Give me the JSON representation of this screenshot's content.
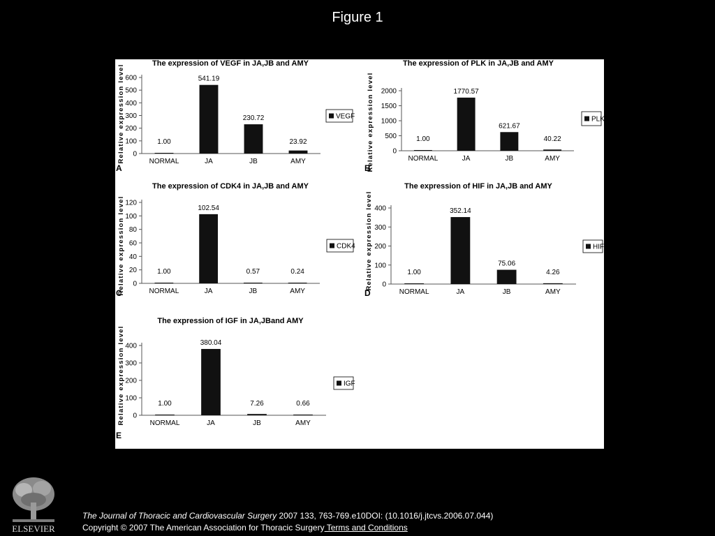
{
  "figure_title": "Figure 1",
  "footer": {
    "journal": "The Journal of Thoracic and Cardiovascular Surgery",
    "citation": " 2007 133, 763-769.e10DOI: (10.1016/j.jtcvs.2006.07.044)",
    "copyright": "Copyright © 2007 The American Association for Thoracic Surgery",
    "terms_link": " Terms and Conditions"
  },
  "logo": {
    "text": "ELSEVIER",
    "icon": "elsevier-tree-icon"
  },
  "colors": {
    "bar": "#111111",
    "background": "#000000",
    "panel": "#ffffff"
  },
  "chart_data": [
    {
      "type": "bar",
      "panel": "A",
      "title": "The expression of VEGF in JA,JB and AMY",
      "ylabel": "Relative expression level",
      "categories": [
        "NORMAL",
        "JA",
        "JB",
        "AMY"
      ],
      "series": [
        {
          "name": "VEGF",
          "values": [
            1.0,
            541.19,
            230.72,
            23.92
          ]
        }
      ],
      "value_labels": [
        "1.00",
        "541.19",
        "230.72",
        "23.92"
      ],
      "yticks": [
        "0",
        "100",
        "200",
        "300",
        "400",
        "500",
        "600"
      ],
      "ylim": [
        0,
        600
      ],
      "legend": "right",
      "grid": false
    },
    {
      "type": "bar",
      "panel": "B",
      "title": "The expression of PLK in JA,JB and AMY",
      "ylabel": "Relative expression level",
      "categories": [
        "NORMAL",
        "JA",
        "JB",
        "AMY"
      ],
      "series": [
        {
          "name": "PLK",
          "values": [
            1.0,
            1770.57,
            621.67,
            40.22
          ]
        }
      ],
      "value_labels": [
        "1.00",
        "1770.57",
        "621.67",
        "40.22"
      ],
      "yticks": [
        "0",
        "500",
        "1000",
        "1500",
        "2000"
      ],
      "ylim": [
        0,
        2000
      ],
      "legend": "right",
      "grid": false
    },
    {
      "type": "bar",
      "panel": "C",
      "title": "The expression of CDK4 in JA,JB and AMY",
      "ylabel": "Relative expression level",
      "categories": [
        "NORMAL",
        "JA",
        "JB",
        "AMY"
      ],
      "series": [
        {
          "name": "CDK4",
          "values": [
            1.0,
            102.54,
            0.57,
            0.24
          ]
        }
      ],
      "value_labels": [
        "1.00",
        "102.54",
        "0.57",
        "0.24"
      ],
      "yticks": [
        "0",
        "20",
        "40",
        "60",
        "80",
        "100",
        "120"
      ],
      "ylim": [
        0,
        120
      ],
      "legend": "right",
      "grid": false
    },
    {
      "type": "bar",
      "panel": "D",
      "title": "The expression of HIF in JA,JB and AMY",
      "ylabel": "Relative expression level",
      "categories": [
        "NORMAL",
        "JA",
        "JB",
        "AMY"
      ],
      "series": [
        {
          "name": "HIF",
          "values": [
            1.0,
            352.14,
            75.06,
            4.26
          ]
        }
      ],
      "value_labels": [
        "1.00",
        "352.14",
        "75.06",
        "4.26"
      ],
      "yticks": [
        "0",
        "100",
        "200",
        "300",
        "400"
      ],
      "ylim": [
        0,
        400
      ],
      "legend": "right",
      "grid": false
    },
    {
      "type": "bar",
      "panel": "E",
      "title": "The expression of IGF in JA,JBand AMY",
      "ylabel": "Relative expression level",
      "categories": [
        "NORMAL",
        "JA",
        "JB",
        "AMY"
      ],
      "series": [
        {
          "name": "IGF",
          "values": [
            1.0,
            380.04,
            7.26,
            0.66
          ]
        }
      ],
      "value_labels": [
        "1.00",
        "380.04",
        "7.26",
        "0.66"
      ],
      "yticks": [
        "0",
        "100",
        "200",
        "300",
        "400"
      ],
      "ylim": [
        0,
        400
      ],
      "legend": "right",
      "grid": false
    }
  ]
}
